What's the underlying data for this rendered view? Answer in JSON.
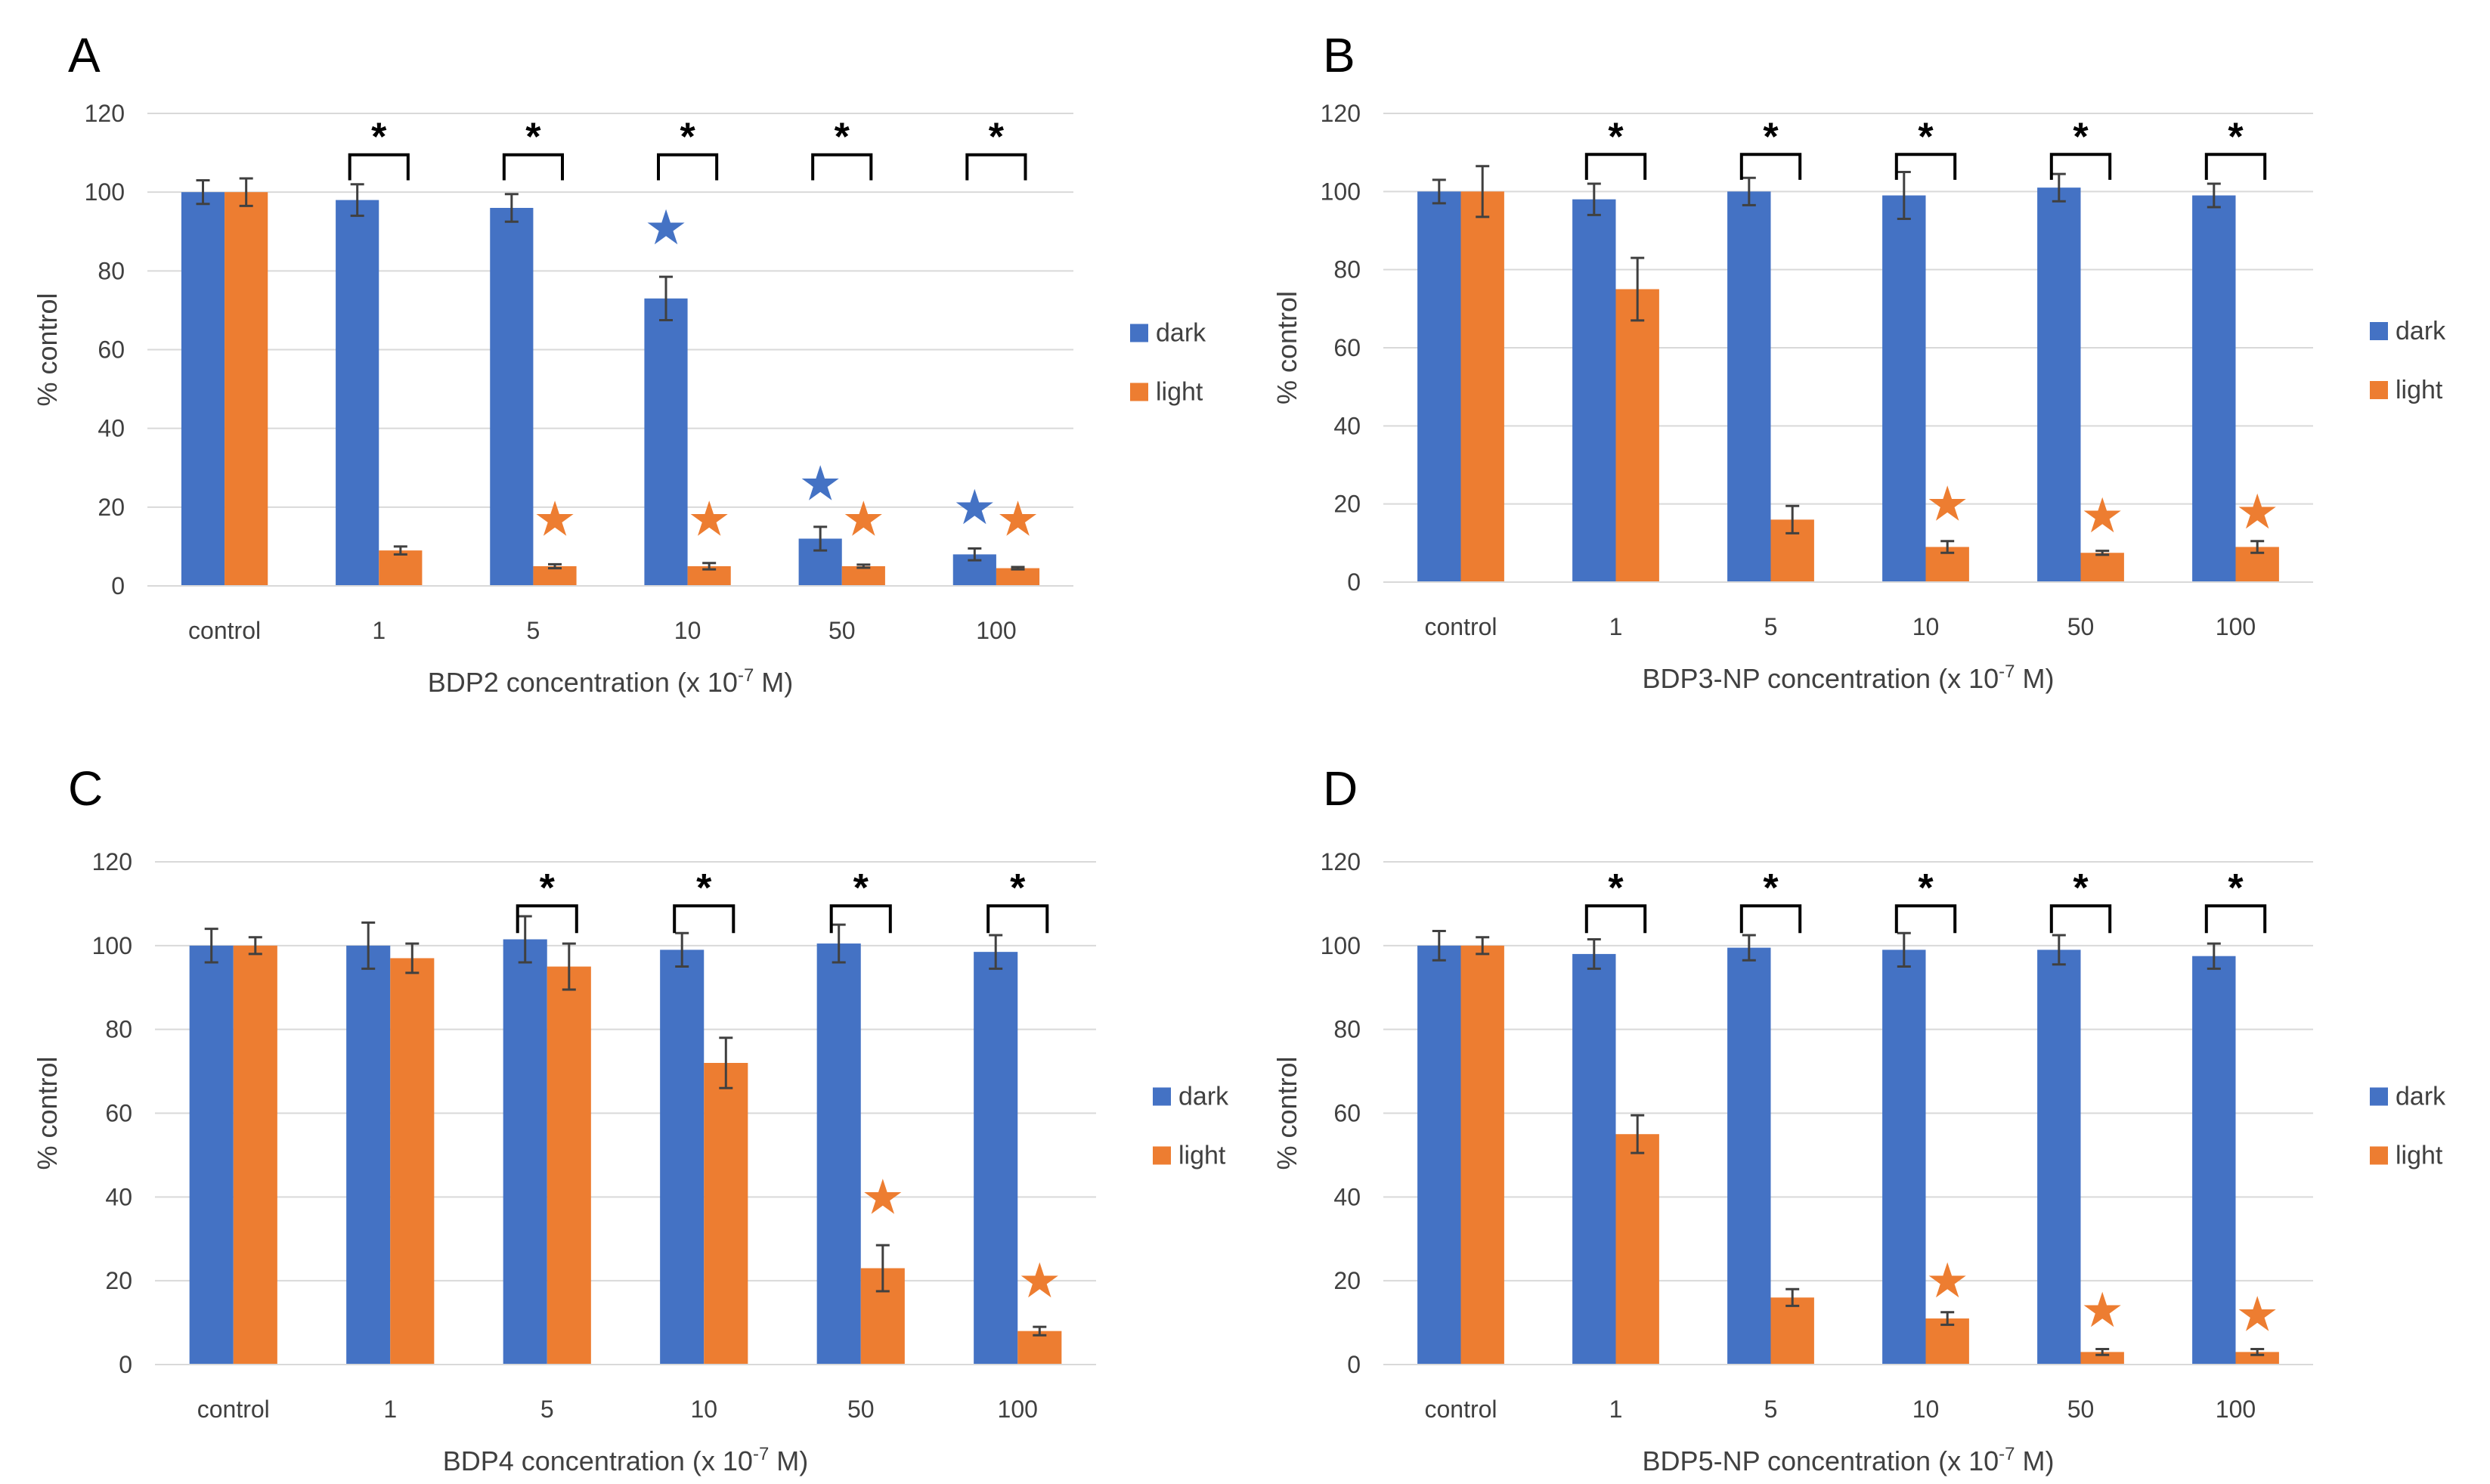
{
  "colors": {
    "dark": "#4472C4",
    "light": "#ED7D31",
    "grid": "#D9D9D9",
    "errbar": "#404040"
  },
  "star_glyph": "★",
  "chart_data": [
    {
      "panel": "A",
      "type": "bar",
      "categories": [
        "control",
        "1",
        "5",
        "10",
        "50",
        "100"
      ],
      "series": [
        {
          "name": "dark",
          "values": [
            100,
            98,
            96,
            73,
            12,
            8
          ],
          "errors": [
            3,
            4,
            3.5,
            5.5,
            3,
            1.5
          ]
        },
        {
          "name": "light",
          "values": [
            100,
            9,
            5,
            5,
            5,
            4.5
          ],
          "errors": [
            3.5,
            1,
            0.5,
            0.8,
            0.4,
            0.3
          ]
        }
      ],
      "ylim": [
        0,
        120
      ],
      "yticks": [
        0,
        20,
        40,
        60,
        80,
        100,
        120
      ],
      "ylabel": "% control",
      "xlabel_main": "BDP2 concentration (x 10",
      "xlabel_exp": "-7",
      "xlabel_end": " M)",
      "legend": [
        "dark",
        "light"
      ],
      "significance": [
        "",
        "*",
        "*",
        "*",
        "*",
        "*"
      ],
      "stars": [
        {
          "category": "10",
          "series": "dark",
          "value": 91
        },
        {
          "category": "50",
          "series": "dark",
          "value": 26
        },
        {
          "category": "100",
          "series": "dark",
          "value": 20
        },
        {
          "category": "5",
          "series": "light",
          "value": 17
        },
        {
          "category": "10",
          "series": "light",
          "value": 17
        },
        {
          "category": "50",
          "series": "light",
          "value": 17
        },
        {
          "category": "100",
          "series": "light",
          "value": 17
        }
      ]
    },
    {
      "panel": "B",
      "type": "bar",
      "categories": [
        "control",
        "1",
        "5",
        "10",
        "50",
        "100"
      ],
      "series": [
        {
          "name": "dark",
          "values": [
            100,
            98,
            100,
            99,
            101,
            99
          ],
          "errors": [
            3,
            4,
            3.5,
            6,
            3.5,
            3
          ]
        },
        {
          "name": "light",
          "values": [
            100,
            75,
            16,
            9,
            7.5,
            9
          ],
          "errors": [
            6.5,
            8,
            3.5,
            1.5,
            0.5,
            1.5
          ]
        }
      ],
      "ylim": [
        0,
        120
      ],
      "yticks": [
        0,
        20,
        40,
        60,
        80,
        100,
        120
      ],
      "ylabel": "% control",
      "xlabel_main": "BDP3-NP concentration (x 10",
      "xlabel_exp": "-7",
      "xlabel_end": " M)",
      "legend": [
        "dark",
        "light"
      ],
      "significance": [
        "",
        "*",
        "*",
        "*",
        "*",
        "*"
      ],
      "stars": [
        {
          "category": "10",
          "series": "light",
          "value": 20
        },
        {
          "category": "50",
          "series": "light",
          "value": 17
        },
        {
          "category": "100",
          "series": "light",
          "value": 18
        }
      ]
    },
    {
      "panel": "C",
      "type": "bar",
      "categories": [
        "control",
        "1",
        "5",
        "10",
        "50",
        "100"
      ],
      "series": [
        {
          "name": "dark",
          "values": [
            100,
            100,
            101.5,
            99,
            100.5,
            98.5
          ],
          "errors": [
            4,
            5.5,
            5.5,
            4,
            4.5,
            4
          ]
        },
        {
          "name": "light",
          "values": [
            100,
            97,
            95,
            72,
            23,
            8
          ],
          "errors": [
            2,
            3.5,
            5.5,
            6,
            5.5,
            1
          ]
        }
      ],
      "ylim": [
        0,
        120
      ],
      "yticks": [
        0,
        20,
        40,
        60,
        80,
        100,
        120
      ],
      "ylabel": "% control",
      "xlabel_main": "BDP4 concentration (x 10",
      "xlabel_exp": "-7",
      "xlabel_end": " M)",
      "legend": [
        "dark",
        "light"
      ],
      "significance": [
        "",
        "",
        "*",
        "*",
        "*",
        "*"
      ],
      "stars": [
        {
          "category": "50",
          "series": "light",
          "value": 40
        },
        {
          "category": "100",
          "series": "light",
          "value": 20
        }
      ]
    },
    {
      "panel": "D",
      "type": "bar",
      "categories": [
        "control",
        "1",
        "5",
        "10",
        "50",
        "100"
      ],
      "series": [
        {
          "name": "dark",
          "values": [
            100,
            98,
            99.5,
            99,
            99,
            97.5
          ],
          "errors": [
            3.5,
            3.5,
            3,
            4,
            3.5,
            3
          ]
        },
        {
          "name": "light",
          "values": [
            100,
            55,
            16,
            11,
            3,
            3
          ],
          "errors": [
            2,
            4.5,
            2,
            1.5,
            0.7,
            0.7
          ]
        }
      ],
      "ylim": [
        0,
        120
      ],
      "yticks": [
        0,
        20,
        40,
        60,
        80,
        100,
        120
      ],
      "ylabel": "% control",
      "xlabel_main": "BDP5-NP concentration (x 10",
      "xlabel_exp": "-7",
      "xlabel_end": " M)",
      "legend": [
        "dark",
        "light"
      ],
      "significance": [
        "",
        "*",
        "*",
        "*",
        "*",
        "*"
      ],
      "stars": [
        {
          "category": "10",
          "series": "light",
          "value": 20
        },
        {
          "category": "50",
          "series": "light",
          "value": 13
        },
        {
          "category": "100",
          "series": "light",
          "value": 12
        }
      ]
    }
  ]
}
